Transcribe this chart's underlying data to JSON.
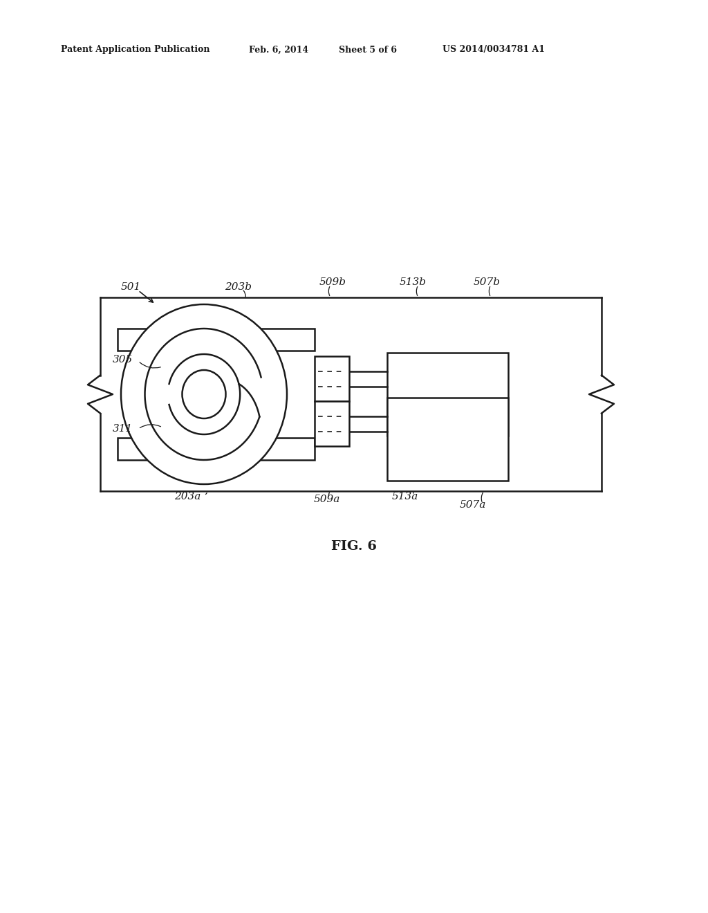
{
  "bg_color": "#ffffff",
  "line_color": "#1a1a1a",
  "header_text1": "Patent Application Publication",
  "header_text2": "Feb. 6, 2014",
  "header_text3": "Sheet 5 of 6",
  "header_text4": "US 2014/0034781 A1",
  "fig_label": "FIG. 6"
}
